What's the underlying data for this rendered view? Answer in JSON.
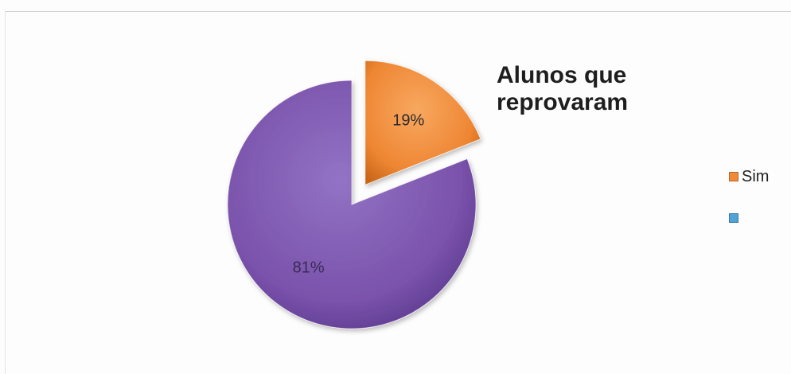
{
  "chart_data": {
    "type": "pie",
    "title": "Alunos que\nreprovaram",
    "legend_position": "right",
    "slices": [
      {
        "label": "Sim",
        "value": 19,
        "display": "19%",
        "color": "#f08a38",
        "exploded": true
      },
      {
        "label": "",
        "value": 81,
        "display": "81%",
        "color": "#7d55ad",
        "exploded": false
      }
    ]
  },
  "legend": [
    {
      "label": "Sim",
      "color": "#f08a38"
    },
    {
      "label": "",
      "color": "#4fa3d6"
    }
  ]
}
